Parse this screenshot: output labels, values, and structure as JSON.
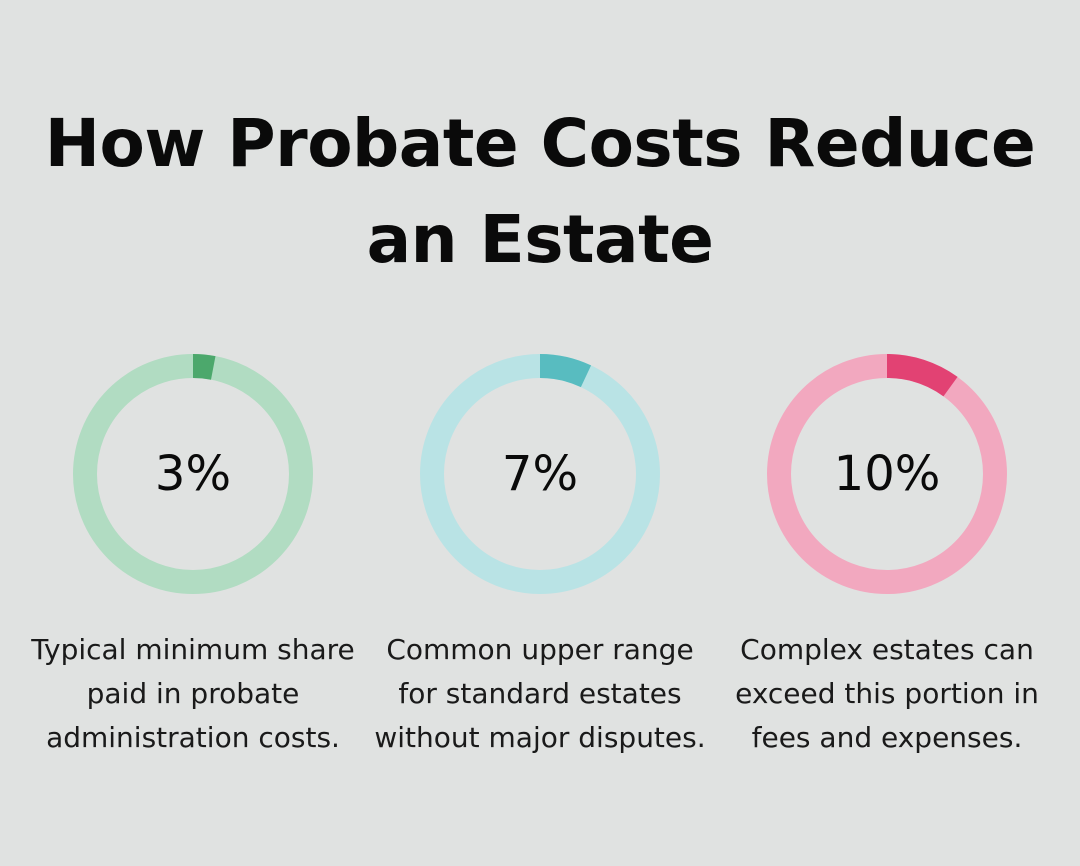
{
  "title": "How Probate Costs Reduce an Estate",
  "stats": [
    {
      "value": "3%",
      "percent": 3,
      "description": "Typical minimum share paid in probate administration costs.",
      "track_color": "#b1dcc2",
      "fill_color": "#4ca86c"
    },
    {
      "value": "7%",
      "percent": 7,
      "description": "Common upper range for standard estates without major disputes.",
      "track_color": "#b9e3e5",
      "fill_color": "#58bcc0"
    },
    {
      "value": "10%",
      "percent": 10,
      "description": "Complex estates can exceed this portion in fees and expenses.",
      "track_color": "#f2a8bf",
      "fill_color": "#e24273"
    }
  ],
  "chart_data": {
    "type": "pie",
    "title": "How Probate Costs Reduce an Estate",
    "categories": [
      "Typical minimum share paid in probate administration costs.",
      "Common upper range for standard estates without major disputes.",
      "Complex estates can exceed this portion in fees and expenses."
    ],
    "values": [
      3,
      7,
      10
    ],
    "unit": "%",
    "style": "donut-gauges"
  }
}
